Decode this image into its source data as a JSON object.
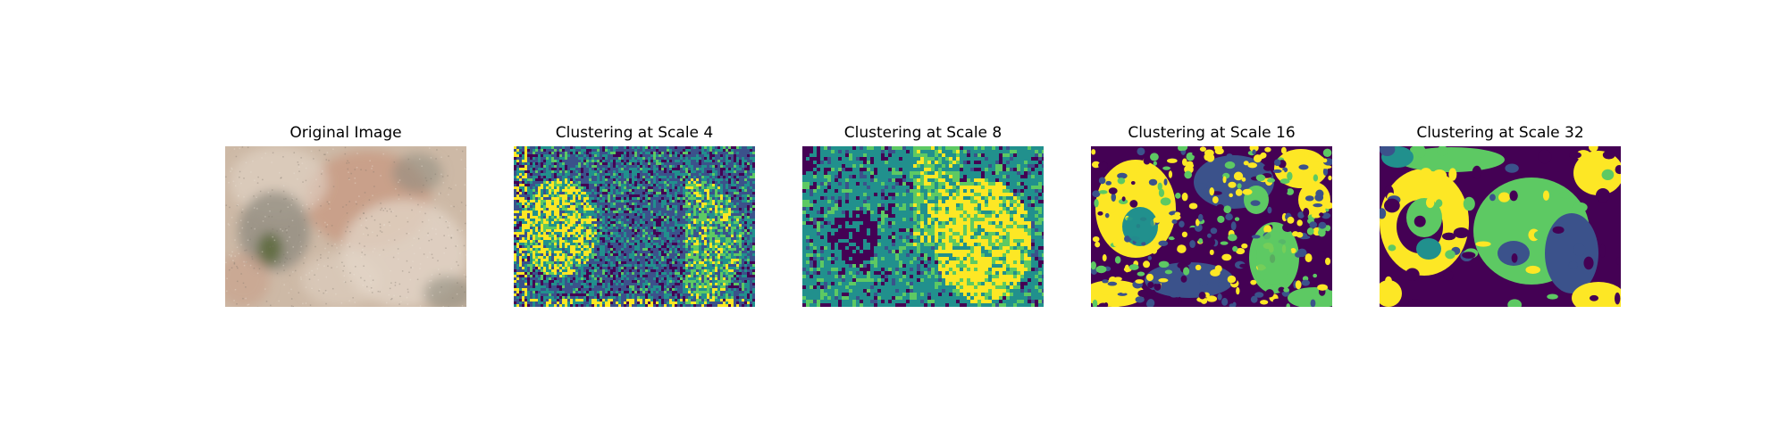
{
  "figure": {
    "panels": [
      {
        "title": "Original Image",
        "kind": "photo"
      },
      {
        "title": "Clustering at Scale 4",
        "kind": "cluster-map"
      },
      {
        "title": "Clustering at Scale 8",
        "kind": "cluster-map"
      },
      {
        "title": "Clustering at Scale 16",
        "kind": "cluster-map"
      },
      {
        "title": "Clustering at Scale 32",
        "kind": "cluster-map"
      }
    ],
    "colormap": {
      "name": "viridis",
      "cluster_colors": [
        "#440154",
        "#3b528b",
        "#21908d",
        "#5dc963",
        "#fde725"
      ]
    },
    "photo_palette": {
      "base": "#cdb9a6",
      "warm": "#c89a83",
      "light": "#e3d6c8",
      "dark": "#8d8a7d",
      "moss": "#5e6b3e"
    }
  }
}
